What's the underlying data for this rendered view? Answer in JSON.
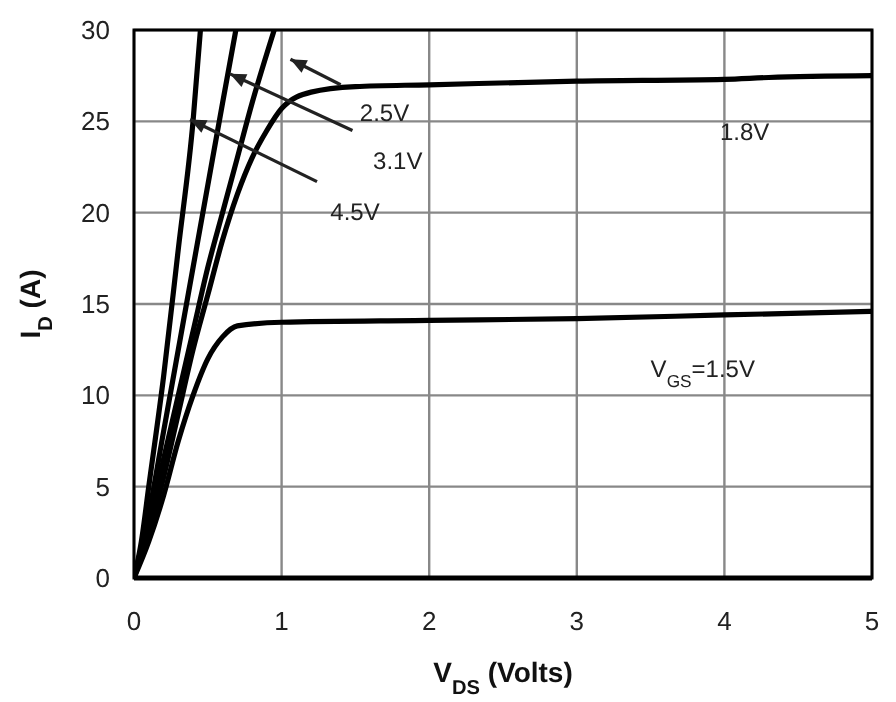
{
  "chart_data": {
    "type": "line",
    "xlabel": "V$_{DS}$ (Volts)",
    "ylabel": "I$_{D}$ (A)",
    "xlim": [
      0,
      5
    ],
    "ylim": [
      0,
      30
    ],
    "xticks": [
      0,
      1,
      2,
      3,
      4,
      5
    ],
    "yticks": [
      0,
      5,
      10,
      15,
      20,
      25,
      30
    ],
    "grid": true,
    "marker": "none",
    "line_style": "solid",
    "series": [
      {
        "name": "4.5V",
        "color": "#000000",
        "x": [
          0,
          0.05,
          0.1,
          0.2,
          0.3,
          0.4,
          0.45
        ],
        "values": [
          0,
          2,
          5,
          11,
          18,
          25,
          30
        ]
      },
      {
        "name": "3.1V",
        "color": "#000000",
        "x": [
          0,
          0.1,
          0.2,
          0.3,
          0.4,
          0.5,
          0.6,
          0.69
        ],
        "values": [
          0,
          3.5,
          8,
          12.5,
          17,
          21.5,
          26,
          30
        ]
      },
      {
        "name": "2.5V",
        "color": "#000000",
        "x": [
          0,
          0.1,
          0.2,
          0.3,
          0.4,
          0.5,
          0.6,
          0.7,
          0.8,
          0.95
        ],
        "values": [
          0,
          3,
          6.5,
          10,
          13.5,
          17,
          20,
          23,
          26,
          30
        ]
      },
      {
        "name": "1.8V",
        "color": "#000000",
        "x": [
          0,
          0.1,
          0.2,
          0.3,
          0.4,
          0.5,
          0.6,
          0.7,
          0.8,
          0.9,
          1,
          1.2,
          1.5,
          2,
          3,
          4,
          4.3,
          5
        ],
        "values": [
          0,
          2.5,
          5.5,
          9,
          12.5,
          15.5,
          18.5,
          21,
          23,
          24.5,
          25.7,
          26.6,
          26.9,
          27,
          27.2,
          27.3,
          27.4,
          27.5
        ]
      },
      {
        "name": "V$_{GS}$=1.5V",
        "color": "#000000",
        "x": [
          0,
          0.1,
          0.2,
          0.3,
          0.4,
          0.5,
          0.6,
          0.7,
          1,
          2,
          3,
          4,
          5
        ],
        "values": [
          0,
          2,
          4.5,
          7.5,
          10,
          12,
          13.2,
          13.8,
          14,
          14.1,
          14.2,
          14.4,
          14.6
        ]
      }
    ]
  }
}
